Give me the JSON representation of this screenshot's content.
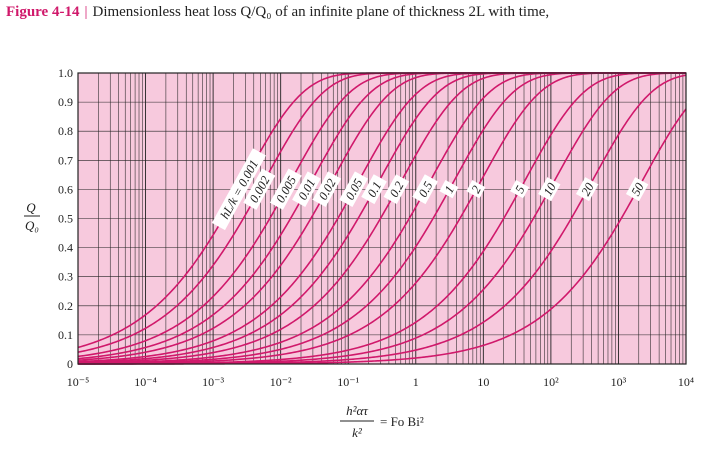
{
  "caption": {
    "figure_label": "Figure 4-14",
    "separator": "|",
    "text": "Dimensionless heat loss Q/Q₀ of an infinite plane of thickness 2L with time,"
  },
  "chart_data": {
    "type": "line",
    "title": "Dimensionless heat loss Q/Q₀ of an infinite plane of thickness 2L with time,",
    "xscale": "log",
    "xlim": [
      1e-05,
      10000
    ],
    "ylim": [
      0,
      1
    ],
    "grid": true,
    "x_ticks": [
      "10⁻⁵",
      "10⁻⁴",
      "10⁻³",
      "10⁻²",
      "10⁻¹",
      "1",
      "10",
      "10²",
      "10³",
      "10⁴"
    ],
    "x_tick_values": [
      1e-05,
      0.0001,
      0.001,
      0.01,
      0.1,
      1,
      10,
      100,
      1000,
      10000
    ],
    "y_ticks": [
      "0",
      "0.1",
      "0.2",
      "0.3",
      "0.4",
      "0.5",
      "0.6",
      "0.7",
      "0.8",
      "0.9",
      "1.0"
    ],
    "y_tick_values": [
      0,
      0.1,
      0.2,
      0.3,
      0.4,
      0.5,
      0.6,
      0.7,
      0.8,
      0.9,
      1.0
    ],
    "ylabel_num": "Q",
    "ylabel_den": "Q₀",
    "xlabel_num": "h²ατ",
    "xlabel_den": "k²",
    "xlabel_rhs": "= Fo Bi²",
    "line_color": "#d0196b",
    "plot_bg": "#f7c9dd",
    "series": [
      {
        "label": "hL/k = 0.001",
        "bi": 0.001,
        "q_half_x": 0.0014
      },
      {
        "label": "0.002",
        "bi": 0.002,
        "q_half_x": 0.0028
      },
      {
        "label": "0.005",
        "bi": 0.005,
        "q_half_x": 0.0069
      },
      {
        "label": "0.01",
        "bi": 0.01,
        "q_half_x": 0.014
      },
      {
        "label": "0.02",
        "bi": 0.02,
        "q_half_x": 0.028
      },
      {
        "label": "0.05",
        "bi": 0.05,
        "q_half_x": 0.07
      },
      {
        "label": "0.1",
        "bi": 0.1,
        "q_half_x": 0.14
      },
      {
        "label": "0.2",
        "bi": 0.2,
        "q_half_x": 0.3
      },
      {
        "label": "0.5",
        "bi": 0.5,
        "q_half_x": 0.8
      },
      {
        "label": "1",
        "bi": 1,
        "q_half_x": 1.8
      },
      {
        "label": "2",
        "bi": 2,
        "q_half_x": 4.5
      },
      {
        "label": "5",
        "bi": 5,
        "q_half_x": 20
      },
      {
        "label": "10",
        "bi": 10,
        "q_half_x": 55
      },
      {
        "label": "20",
        "bi": 20,
        "q_half_x": 200
      },
      {
        "label": "50",
        "bi": 50,
        "q_half_x": 1100
      }
    ]
  }
}
